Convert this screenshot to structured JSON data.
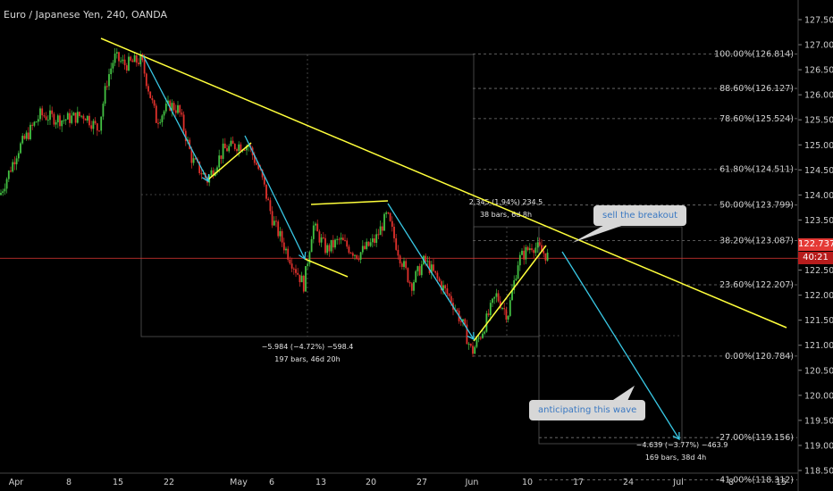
{
  "header": {
    "title": "Euro / Japanese Yen, 240, OANDA"
  },
  "callouts": {
    "sell": "sell the breakout",
    "wave": "anticipating this wave"
  },
  "price_tag": {
    "price": "122.737",
    "countdown": "40:21",
    "color": "#e53935"
  },
  "measures": {
    "m1_line1": "−5.984 (−4.72%) −598.4",
    "m1_line2": "197 bars, 46d 20h",
    "m2_line1": "2.345 (1.94%) 234.5",
    "m2_line2": "38 bars, 6d 8h",
    "m3_line1": "−4.639 (−3.77%) −463.9",
    "m3_line2": "169 bars, 38d 4h"
  },
  "colors": {
    "up": "#43c243",
    "down": "#e0312c",
    "trend": "#ffff3b",
    "wave": "#39c8e5",
    "grid": "#2a2a2a"
  },
  "chart_data": {
    "type": "candlestick",
    "title": "Euro / Japanese Yen, 240, OANDA",
    "ylim": [
      118.2,
      127.8
    ],
    "yticks": [
      "127.500",
      "127.000",
      "126.500",
      "126.000",
      "125.500",
      "125.000",
      "124.500",
      "124.000",
      "123.500",
      "123.000",
      "122.500",
      "122.000",
      "121.500",
      "121.000",
      "120.500",
      "120.000",
      "119.500",
      "119.000",
      "118.500"
    ],
    "xticks": [
      "Apr",
      "8",
      "15",
      "22",
      "May",
      "6",
      "13",
      "20",
      "27",
      "Jun",
      "10",
      "17",
      "24",
      "Jul",
      "8",
      "15"
    ],
    "fib_levels": [
      {
        "label": "100.00%(126.814)",
        "price": 126.814
      },
      {
        "label": "88.60%(126.127)",
        "price": 126.127
      },
      {
        "label": "78.60%(125.524)",
        "price": 125.524
      },
      {
        "label": "61.80%(124.511)",
        "price": 124.511
      },
      {
        "label": "50.00%(123.799)",
        "price": 123.799
      },
      {
        "label": "38.20%(123.087)",
        "price": 123.087
      },
      {
        "label": "23.60%(122.207)",
        "price": 122.207
      },
      {
        "label": "0.00%(120.784)",
        "price": 120.784
      },
      {
        "label": "-27.00%(119.156)",
        "price": 119.156
      },
      {
        "label": "-41.00%(118.312)",
        "price": 118.312
      }
    ],
    "last_price": 122.737,
    "swing_points": [
      {
        "date": "Apr 16",
        "price": 126.8
      },
      {
        "date": "Apr 25",
        "price": 124.2
      },
      {
        "date": "May 2",
        "price": 125.1
      },
      {
        "date": "May 10",
        "price": 122.1
      },
      {
        "date": "Jun 1",
        "price": 120.8
      },
      {
        "date": "Jun 13",
        "price": 122.9
      },
      {
        "date": "Jun 26",
        "price": 118.4
      }
    ]
  }
}
